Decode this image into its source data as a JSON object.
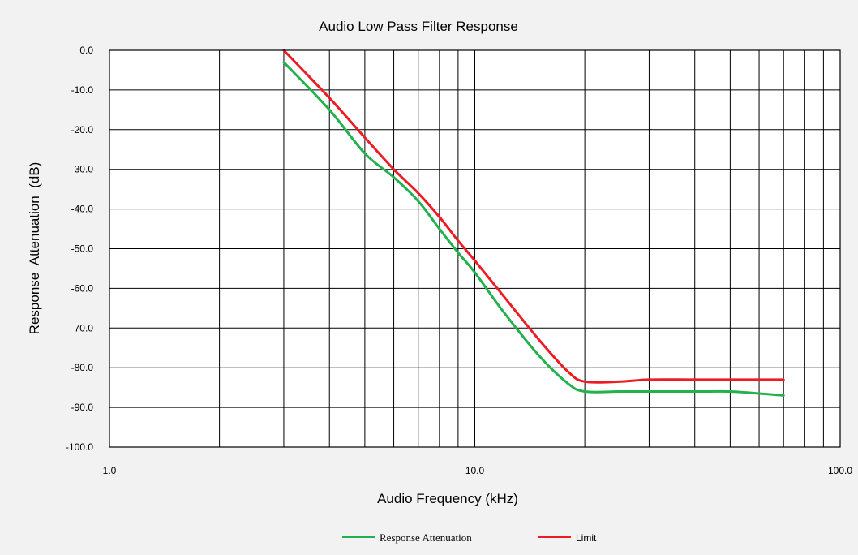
{
  "chart_data": {
    "type": "line",
    "title": "Audio Low Pass Filter Response",
    "xlabel": "Audio Frequency (kHz)",
    "ylabel": "Response  Attenuation  (dB)",
    "x_scale": "log",
    "xlim": [
      1.0,
      100.0
    ],
    "ylim": [
      -100.0,
      0.0
    ],
    "x_ticks": [
      1.0,
      10.0,
      100.0
    ],
    "x_tick_labels": [
      "1.0",
      "10.0",
      "100.0"
    ],
    "y_ticks": [
      0,
      -10,
      -20,
      -30,
      -40,
      -50,
      -60,
      -70,
      -80,
      -90,
      -100
    ],
    "y_tick_labels": [
      "0.0",
      "-10.0",
      "-20.0",
      "-30.0",
      "-40.0",
      "-50.0",
      "-60.0",
      "-70.0",
      "-80.0",
      "-90.0",
      "-100.0"
    ],
    "grid": true,
    "legend_position": "bottom",
    "series": [
      {
        "name": "Response Attenuation",
        "color": "#22b14c",
        "x": [
          3,
          4,
          5,
          6,
          7,
          8,
          9,
          10,
          12,
          15,
          18,
          20,
          25,
          30,
          40,
          50,
          60,
          70
        ],
        "y": [
          -3,
          -15,
          -26,
          -32,
          -38,
          -45,
          -51,
          -56,
          -66,
          -77,
          -84,
          -86,
          -86,
          -86,
          -86,
          -86,
          -86.5,
          -87
        ]
      },
      {
        "name": "Limit",
        "color": "#ed1c24",
        "x": [
          3,
          4,
          5,
          6,
          7,
          8,
          9,
          10,
          12,
          15,
          18,
          20,
          25,
          30,
          40,
          50,
          60,
          70
        ],
        "y": [
          0,
          -12,
          -22,
          -30,
          -36,
          -42,
          -48,
          -53,
          -62,
          -73,
          -81,
          -83.5,
          -83.5,
          -83,
          -83,
          -83,
          -83,
          -83
        ]
      }
    ]
  }
}
